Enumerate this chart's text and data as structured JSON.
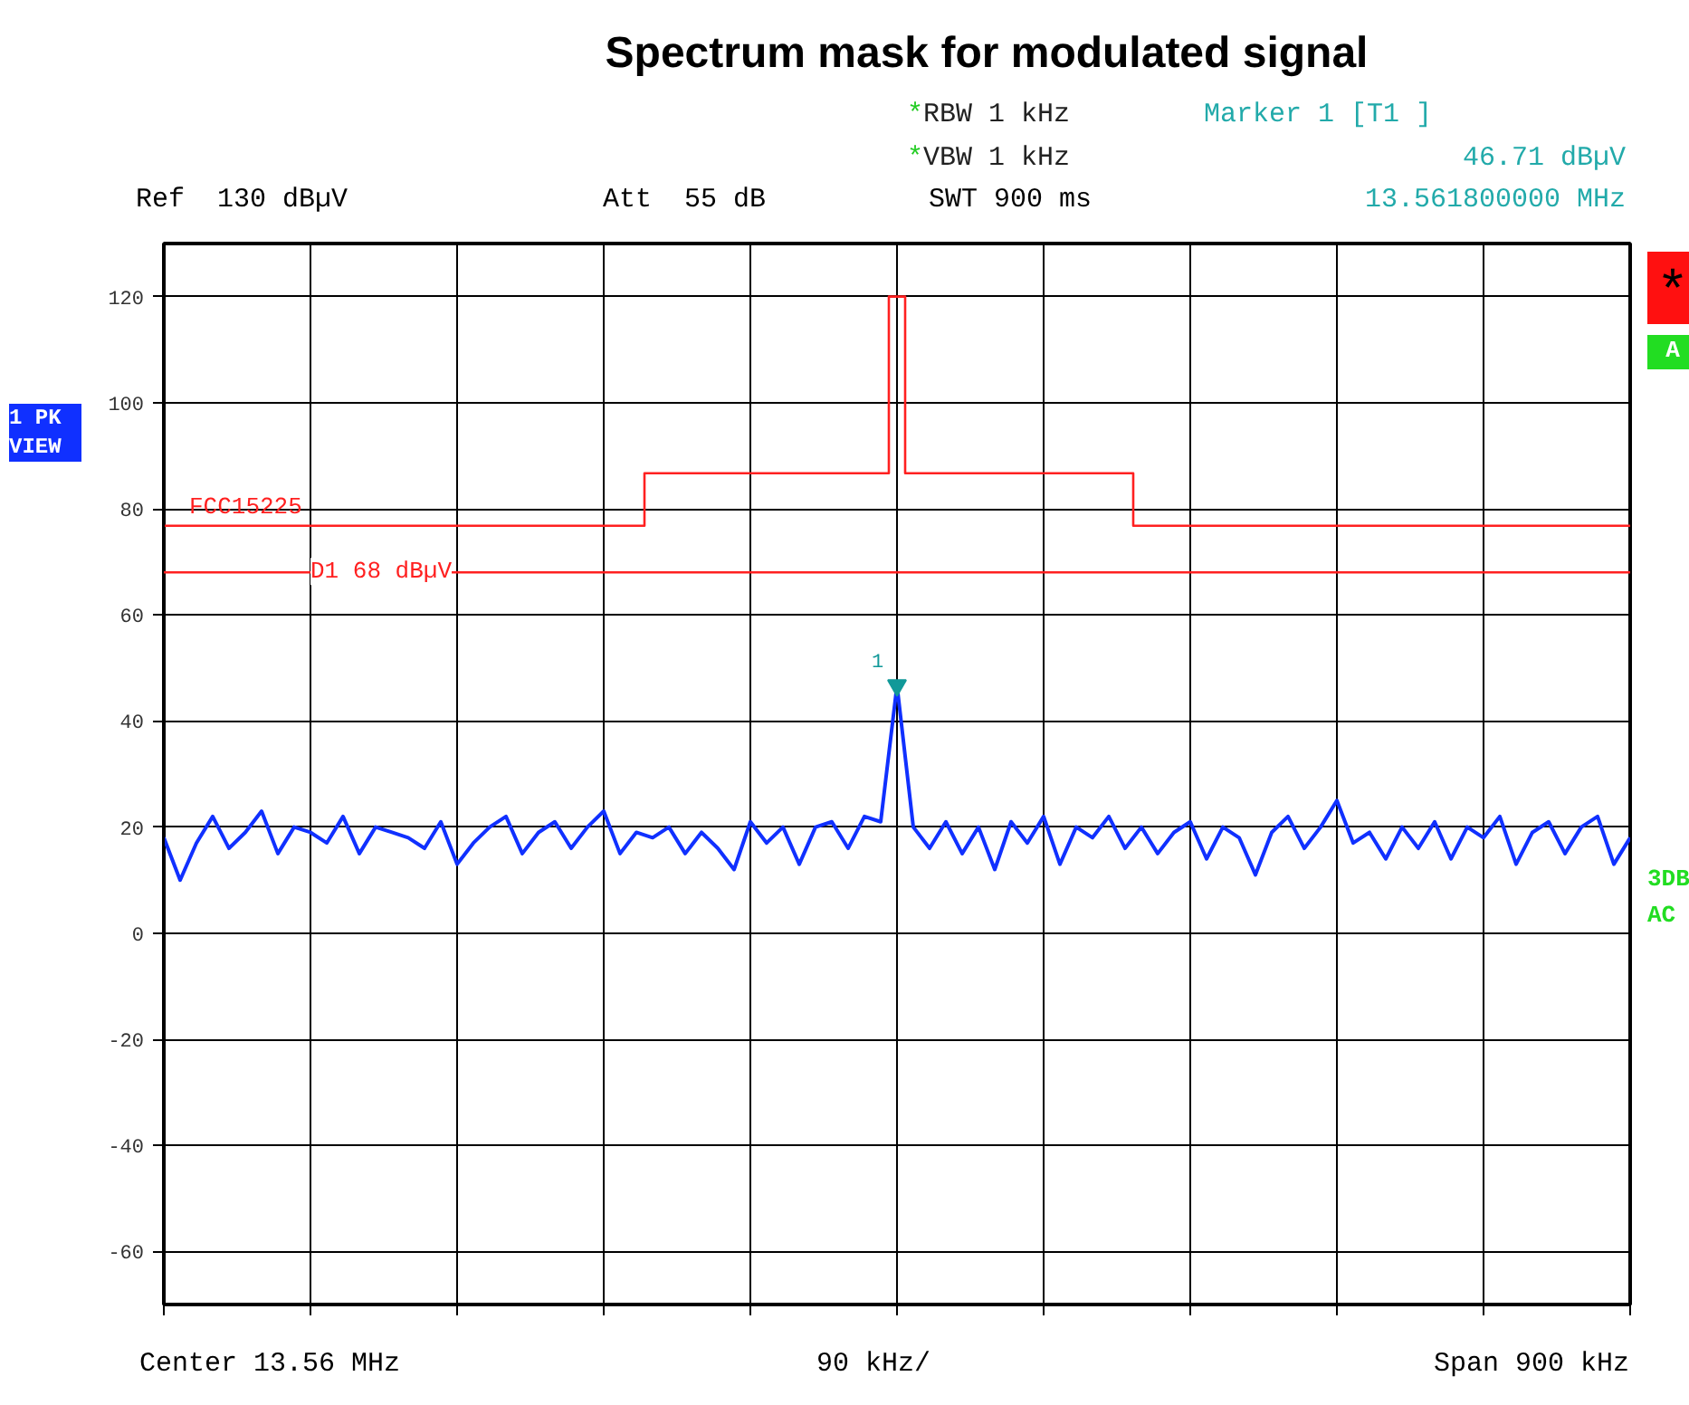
{
  "chart_data": {
    "type": "line",
    "title": "Spectrum mask for modulated signal",
    "categories": [
      null,
      null,
      null,
      null,
      null,
      null,
      null,
      null,
      null,
      null,
      null,
      null,
      null,
      null,
      null,
      null,
      null,
      null,
      null,
      null,
      null,
      null,
      null,
      null,
      null,
      null,
      null,
      null,
      null,
      null,
      null,
      null,
      null,
      null,
      null,
      null,
      null,
      null,
      null,
      null,
      null,
      null,
      null,
      null,
      null,
      null,
      null,
      null,
      null,
      null,
      null,
      null,
      null,
      null,
      null,
      null,
      null,
      null,
      null,
      null,
      null,
      null,
      null,
      null,
      null,
      null,
      null,
      null,
      null,
      null,
      null,
      null,
      null,
      null,
      null,
      null,
      null,
      null,
      null,
      null,
      null,
      null,
      null,
      null,
      null,
      null,
      null,
      null,
      null,
      null,
      null
    ],
    "ylim": [
      -70,
      130
    ],
    "yticks": [
      -60,
      -40,
      -20,
      0,
      20,
      40,
      60,
      80,
      100,
      120
    ],
    "tick_labels": "y",
    "grid": true,
    "legend": false,
    "line_style": "solid",
    "marker": "none",
    "series": [
      {
        "color": "#1030ff",
        "values": [
          18,
          10,
          17,
          22,
          16,
          19,
          23,
          15,
          20,
          19,
          17,
          22,
          15,
          20,
          19,
          18,
          16,
          21,
          13,
          17,
          20,
          22,
          15,
          19,
          21,
          16,
          20,
          23,
          15,
          19,
          18,
          20,
          15,
          19,
          16,
          12,
          21,
          17,
          20,
          13,
          20,
          21,
          16,
          22,
          21,
          46.71,
          20,
          16,
          21,
          15,
          20,
          12,
          21,
          17,
          22,
          13,
          20,
          18,
          22,
          16,
          20,
          15,
          19,
          21,
          14,
          20,
          18,
          11,
          19,
          22,
          16,
          20,
          25,
          17,
          19,
          14,
          20,
          16,
          21,
          14,
          20,
          18,
          22,
          13,
          19,
          21,
          15,
          20,
          22,
          13,
          18
        ]
      },
      {
        "name": "FCC15225",
        "type": "step",
        "color": "#ff2020",
        "values": [
          76.8,
          76.8,
          76.8,
          76.8,
          76.8,
          76.8,
          76.8,
          76.8,
          76.8,
          76.8,
          76.8,
          76.8,
          76.8,
          76.8,
          76.8,
          76.8,
          76.8,
          76.8,
          76.8,
          76.8,
          76.8,
          76.8,
          76.8,
          76.8,
          76.8,
          76.8,
          76.8,
          76.8,
          76.8,
          76.8,
          86.7,
          86.7,
          86.7,
          86.7,
          86.7,
          86.7,
          86.7,
          86.7,
          86.7,
          86.7,
          86.7,
          86.7,
          86.7,
          86.7,
          86.7,
          120,
          86.7,
          86.7,
          86.7,
          86.7,
          86.7,
          86.7,
          86.7,
          86.7,
          86.7,
          86.7,
          86.7,
          86.7,
          86.7,
          86.7,
          76.8,
          76.8,
          76.8,
          76.8,
          76.8,
          76.8,
          76.8,
          76.8,
          76.8,
          76.8,
          76.8,
          76.8,
          76.8,
          76.8,
          76.8,
          76.8,
          76.8,
          76.8,
          76.8,
          76.8,
          76.8,
          76.8,
          76.8,
          76.8,
          76.8,
          76.8,
          76.8,
          76.8,
          76.8,
          76.8,
          76.8
        ]
      }
    ],
    "ref_lines": [
      {
        "axis": "y",
        "value": 68,
        "label": "D1 68 dBµV",
        "color": "#ff2020"
      }
    ],
    "annotations": [
      "*RBW 1 kHz",
      "*VBW 1 kHz",
      "Ref  130 dBµV",
      "Att  55 dB",
      "SWT 900 ms",
      "Marker 1 [T1 ]",
      "46.71 dBµV",
      "13.561800000 MHz",
      "1 PK VIEW",
      "*",
      "A",
      "3DB AC",
      "Center 13.56 MHz",
      "90 kHz/",
      "Span 900 kHz",
      "1"
    ]
  }
}
